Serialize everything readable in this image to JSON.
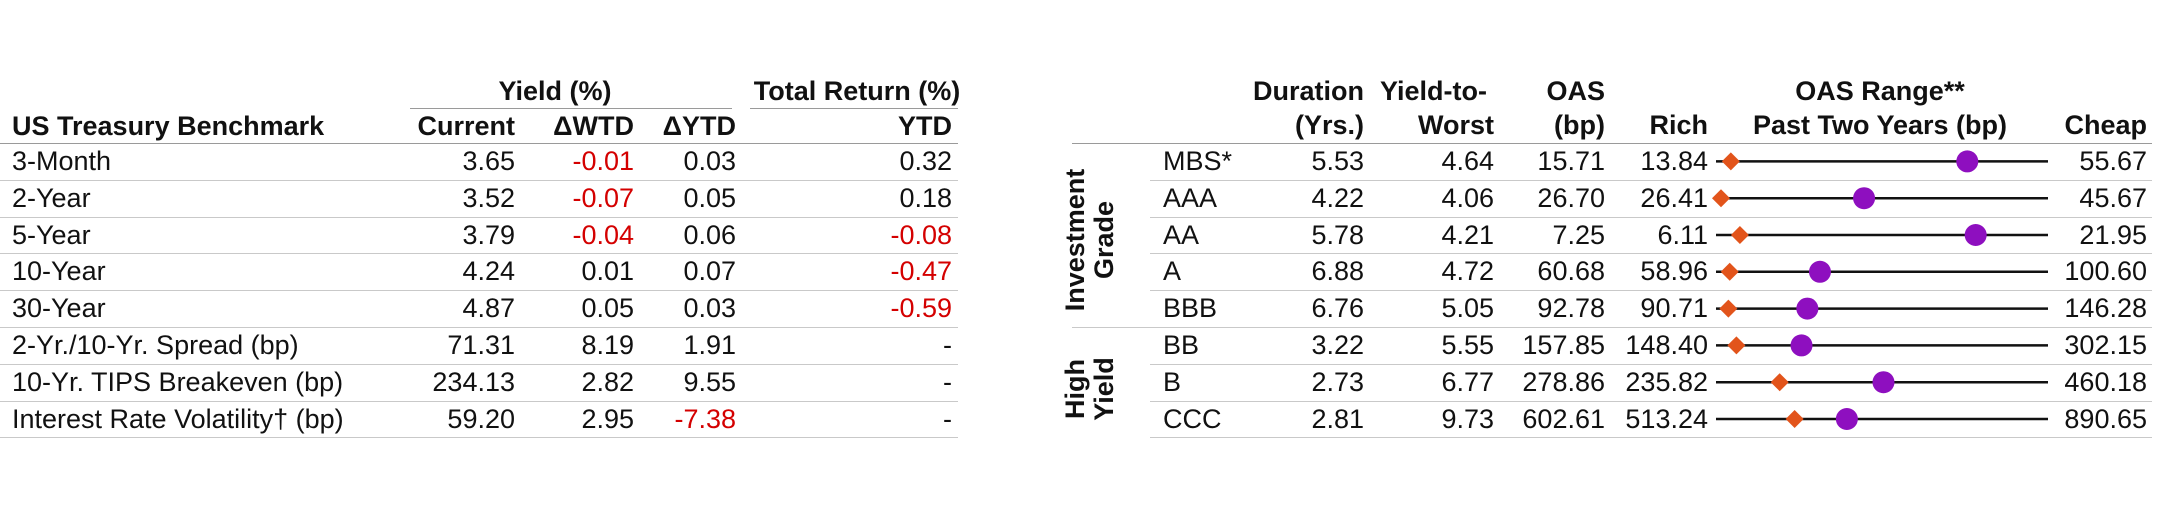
{
  "treasury": {
    "group_headers": {
      "yield": "Yield (%)",
      "total_return": "Total Return (%)"
    },
    "columns": [
      "US Treasury Benchmark",
      "Current",
      "ΔWTD",
      "ΔYTD",
      "YTD"
    ],
    "rows": [
      {
        "label": "3-Month",
        "current": "3.65",
        "wtd": "-0.01",
        "ytd_chg": "0.03",
        "ytd": "0.32"
      },
      {
        "label": "2-Year",
        "current": "3.52",
        "wtd": "-0.07",
        "ytd_chg": "0.05",
        "ytd": "0.18"
      },
      {
        "label": "5-Year",
        "current": "3.79",
        "wtd": "-0.04",
        "ytd_chg": "0.06",
        "ytd": "-0.08"
      },
      {
        "label": "10-Year",
        "current": "4.24",
        "wtd": "0.01",
        "ytd_chg": "0.07",
        "ytd": "-0.47"
      },
      {
        "label": "30-Year",
        "current": "4.87",
        "wtd": "0.05",
        "ytd_chg": "0.03",
        "ytd": "-0.59"
      },
      {
        "label": "2-Yr./10-Yr. Spread (bp)",
        "current": "71.31",
        "wtd": "8.19",
        "ytd_chg": "1.91",
        "ytd": "-"
      },
      {
        "label": "10-Yr. TIPS Breakeven (bp)",
        "current": "234.13",
        "wtd": "2.82",
        "ytd_chg": "9.55",
        "ytd": "-"
      },
      {
        "label": "Interest Rate Volatility† (bp)",
        "current": "59.20",
        "wtd": "2.95",
        "ytd_chg": "-7.38",
        "ytd": "-"
      }
    ]
  },
  "credit": {
    "headers": {
      "duration": [
        "Duration",
        "(Yrs.)"
      ],
      "ytw": [
        "Yield-to-",
        "Worst"
      ],
      "oas": [
        "OAS",
        "(bp)"
      ],
      "rich": "Rich",
      "range": [
        "OAS Range**",
        "Past Two Years (bp)"
      ],
      "cheap": "Cheap"
    },
    "groups": [
      {
        "label": [
          "Investment",
          "Grade"
        ]
      },
      {
        "label": [
          "High",
          "Yield"
        ]
      }
    ],
    "rows": [
      {
        "name": "MBS*",
        "duration": "5.53",
        "ytw": "4.64",
        "oas": "15.71",
        "rich": "13.84",
        "cheap": "55.67"
      },
      {
        "name": "AAA",
        "duration": "4.22",
        "ytw": "4.06",
        "oas": "26.70",
        "rich": "26.41",
        "cheap": "45.67"
      },
      {
        "name": "AA",
        "duration": "5.78",
        "ytw": "4.21",
        "oas": "7.25",
        "rich": "6.11",
        "cheap": "21.95"
      },
      {
        "name": "A",
        "duration": "6.88",
        "ytw": "4.72",
        "oas": "60.68",
        "rich": "58.96",
        "cheap": "100.60"
      },
      {
        "name": "BBB",
        "duration": "6.76",
        "ytw": "5.05",
        "oas": "92.78",
        "rich": "90.71",
        "cheap": "146.28"
      },
      {
        "name": "BB",
        "duration": "3.22",
        "ytw": "5.55",
        "oas": "157.85",
        "rich": "148.40",
        "cheap": "302.15"
      },
      {
        "name": "B",
        "duration": "2.73",
        "ytw": "6.77",
        "oas": "278.86",
        "rich": "235.82",
        "cheap": "460.18"
      },
      {
        "name": "CCC",
        "duration": "2.81",
        "ytw": "9.73",
        "oas": "602.61",
        "rich": "513.24",
        "cheap": "890.65"
      }
    ]
  },
  "chart_data": {
    "type": "range",
    "title": "OAS Range**",
    "subtitle": "Past Two Years (bp)",
    "categories": [
      "MBS*",
      "AAA",
      "AA",
      "A",
      "BBB",
      "BB",
      "B",
      "CCC"
    ],
    "rich": [
      13.84,
      26.41,
      6.11,
      58.96,
      90.71,
      148.4,
      235.82,
      513.24
    ],
    "cheap": [
      55.67,
      45.67,
      21.95,
      100.6,
      146.28,
      302.15,
      460.18,
      890.65
    ],
    "current_oas": [
      15.71,
      26.7,
      7.25,
      60.68,
      92.78,
      157.85,
      278.86,
      602.61
    ],
    "median_oas": [
      45.5,
      35.0,
      18.5,
      72.0,
      106.0,
      188.0,
      349.0,
      662.0
    ],
    "colors": {
      "current": "#e2541b",
      "median": "#8e0fbf",
      "range_line": "#111111"
    }
  }
}
